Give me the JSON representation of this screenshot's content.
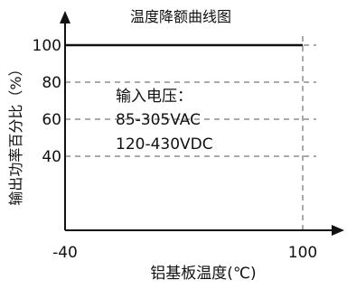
{
  "chart_data": {
    "type": "line",
    "title": "温度降额曲线图",
    "xlabel": "铝基板温度(℃)",
    "ylabel": "输出功率百分比（%）",
    "xlim": [
      -40,
      100
    ],
    "ylim": [
      0,
      100
    ],
    "x_ticks": [
      {
        "value": -40,
        "label": "-40"
      },
      {
        "value": 100,
        "label": "100"
      }
    ],
    "y_ticks": [
      {
        "value": 40,
        "label": "40"
      },
      {
        "value": 60,
        "label": "60"
      },
      {
        "value": 80,
        "label": "80"
      },
      {
        "value": 100,
        "label": "100"
      }
    ],
    "grid": "dashed at y ticks and x=100",
    "series": [
      {
        "x": [
          -40,
          100
        ],
        "values": [
          100,
          100
        ]
      }
    ],
    "annotations": [
      "输入电压：",
      "85-305VAC",
      "120-430VDC"
    ],
    "colors": {
      "axis": "#111111",
      "line": "#111111",
      "grid": "#555555"
    }
  }
}
